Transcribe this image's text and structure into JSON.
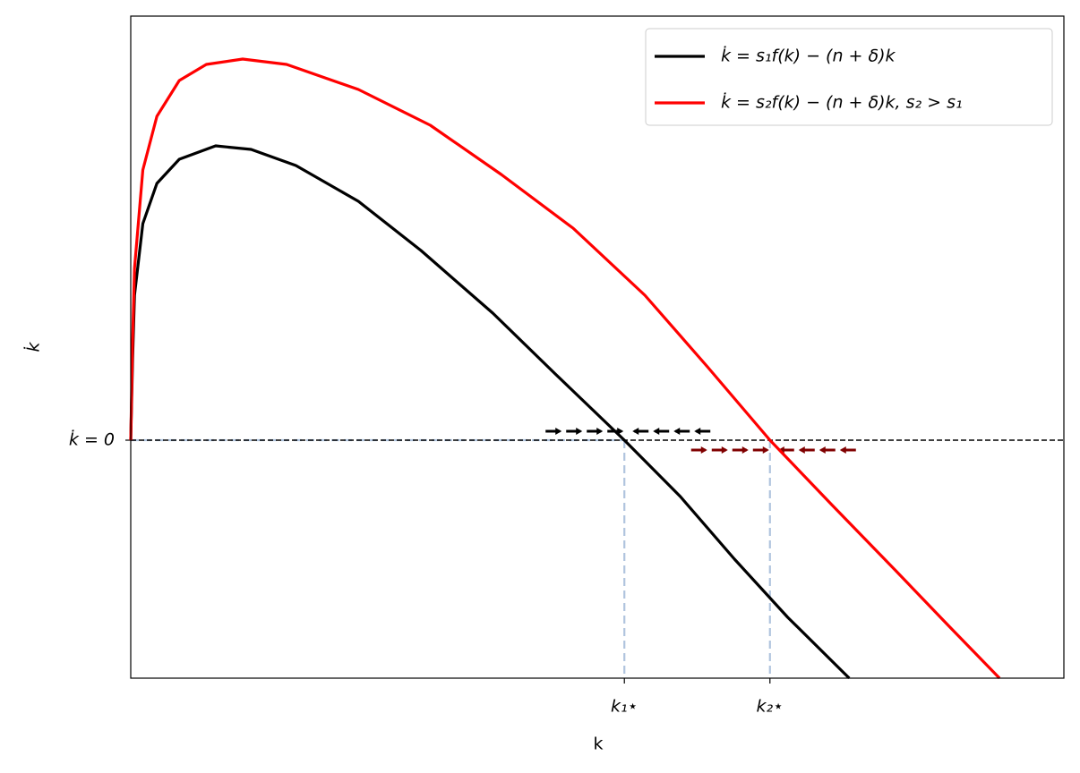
{
  "chart_data": {
    "type": "line",
    "x_label": "k",
    "y_label": "k̇",
    "xlim": [
      0,
      10
    ],
    "ylim": [
      -2.66,
      4.74
    ],
    "xticks": [
      {
        "value": 5.29,
        "label": "k₁⋆"
      },
      {
        "value": 6.85,
        "label": "k₂⋆"
      }
    ],
    "yticks": [
      {
        "value": 0,
        "label": "k̇ = 0"
      }
    ],
    "legend": "upper right",
    "series": [
      {
        "name": "k̇ = s₁f(k) − (n + δ)k",
        "color": "#000000",
        "x": [
          0,
          0.02,
          0.04,
          0.13,
          0.28,
          0.52,
          0.91,
          1.29,
          1.77,
          2.44,
          3.11,
          3.88,
          4.55,
          5.29,
          5.89,
          6.47,
          7.04,
          7.7
        ],
        "values": [
          0,
          0.92,
          1.62,
          2.42,
          2.87,
          3.14,
          3.29,
          3.25,
          3.07,
          2.67,
          2.12,
          1.42,
          0.74,
          0,
          -0.63,
          -1.33,
          -1.98,
          -2.66
        ]
      },
      {
        "name": "k̇ = s₂f(k) − (n + δ)k, s₂ > s₁",
        "color": "#ff0000",
        "x": [
          0,
          0.02,
          0.04,
          0.13,
          0.28,
          0.52,
          0.81,
          1.2,
          1.67,
          2.44,
          3.21,
          3.97,
          4.74,
          5.51,
          6.18,
          6.85,
          7.52,
          8.2,
          8.77,
          9.31
        ],
        "values": [
          0,
          1.12,
          1.92,
          3.02,
          3.62,
          4.02,
          4.2,
          4.26,
          4.2,
          3.92,
          3.52,
          2.97,
          2.37,
          1.62,
          0.82,
          0,
          -0.73,
          -1.46,
          -2.08,
          -2.66
        ]
      }
    ]
  }
}
